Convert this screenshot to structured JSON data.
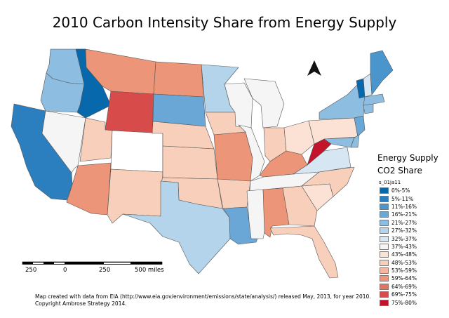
{
  "title": "2010 Carbon Intensity Share from Energy Supply",
  "legend": {
    "title_line1": "Energy Supply",
    "title_line2": "CO2 Share",
    "field": "s_01ja11",
    "classes": [
      {
        "label": "0%-5%",
        "color": "#0868ac"
      },
      {
        "label": "5%-11%",
        "color": "#2b7fbf"
      },
      {
        "label": "11%-16%",
        "color": "#4a95cc"
      },
      {
        "label": "16%-21%",
        "color": "#6aa7d6"
      },
      {
        "label": "21%-27%",
        "color": "#8dbde0"
      },
      {
        "label": "27%-32%",
        "color": "#b3d4ea"
      },
      {
        "label": "32%-37%",
        "color": "#d6e6f2"
      },
      {
        "label": "37%-43%",
        "color": "#f5f5f5"
      },
      {
        "label": "43%-48%",
        "color": "#fbe2d5"
      },
      {
        "label": "48%-53%",
        "color": "#f8cfba"
      },
      {
        "label": "53%-59%",
        "color": "#f4b69c"
      },
      {
        "label": "59%-64%",
        "color": "#ec9578"
      },
      {
        "label": "64%-69%",
        "color": "#e27562"
      },
      {
        "label": "69%-75%",
        "color": "#d84b4b"
      },
      {
        "label": "75%-80%",
        "color": "#c4142b"
      }
    ]
  },
  "scale_bar": {
    "labels": [
      "250",
      "0",
      "250",
      "500 miles"
    ]
  },
  "footer": {
    "line1": "Map created with data from EIA (http://www.eia.gov/environment/emissions/state/analysis/) released May, 2013, for year 2010.",
    "line2": "Copyright Ambrose Strategy 2014."
  },
  "states": [
    {
      "name": "WA",
      "color": "#8dbde0"
    },
    {
      "name": "OR",
      "color": "#8dbde0"
    },
    {
      "name": "CA",
      "color": "#2b7fbf"
    },
    {
      "name": "NV",
      "color": "#f5f5f5"
    },
    {
      "name": "ID",
      "color": "#0868ac"
    },
    {
      "name": "MT",
      "color": "#ec9578"
    },
    {
      "name": "WY",
      "color": "#d84b4b"
    },
    {
      "name": "UT",
      "color": "#f8cfba"
    },
    {
      "name": "AZ",
      "color": "#ec9578"
    },
    {
      "name": "CO",
      "color": "#ffffff"
    },
    {
      "name": "NM",
      "color": "#f8cfba"
    },
    {
      "name": "ND",
      "color": "#ec9578"
    },
    {
      "name": "SD",
      "color": "#6aa7d6"
    },
    {
      "name": "NE",
      "color": "#f8cfba"
    },
    {
      "name": "KS",
      "color": "#f8cfba"
    },
    {
      "name": "OK",
      "color": "#f8cfba"
    },
    {
      "name": "TX",
      "color": "#b3d4ea"
    },
    {
      "name": "MN",
      "color": "#b3d4ea"
    },
    {
      "name": "IA",
      "color": "#f8cfba"
    },
    {
      "name": "MO",
      "color": "#ec9578"
    },
    {
      "name": "AR",
      "color": "#f8cfba"
    },
    {
      "name": "LA",
      "color": "#6aa7d6"
    },
    {
      "name": "WI",
      "color": "#f5f5f5"
    },
    {
      "name": "IL",
      "color": "#f5f5f5"
    },
    {
      "name": "MI",
      "color": "#f5f5f5"
    },
    {
      "name": "IN",
      "color": "#f8cfba"
    },
    {
      "name": "OH",
      "color": "#fbe2d5"
    },
    {
      "name": "KY",
      "color": "#ec9578"
    },
    {
      "name": "TN",
      "color": "#f5f5f5"
    },
    {
      "name": "MS",
      "color": "#f5f5f5"
    },
    {
      "name": "AL",
      "color": "#ec9578"
    },
    {
      "name": "GA",
      "color": "#f8cfba"
    },
    {
      "name": "FL",
      "color": "#f8cfba"
    },
    {
      "name": "SC",
      "color": "#fbe2d5"
    },
    {
      "name": "NC",
      "color": "#f8cfba"
    },
    {
      "name": "VA",
      "color": "#d6e6f2"
    },
    {
      "name": "WV",
      "color": "#c4142b"
    },
    {
      "name": "PA",
      "color": "#fbe2d5"
    },
    {
      "name": "NY",
      "color": "#8dbde0"
    },
    {
      "name": "NJ",
      "color": "#6aa7d6"
    },
    {
      "name": "MD",
      "color": "#8dbde0"
    },
    {
      "name": "DE",
      "color": "#8dbde0"
    },
    {
      "name": "VT",
      "color": "#0868ac"
    },
    {
      "name": "NH",
      "color": "#d6e6f2"
    },
    {
      "name": "ME",
      "color": "#4a95cc"
    },
    {
      "name": "MA",
      "color": "#8dbde0"
    },
    {
      "name": "CT",
      "color": "#8dbde0"
    }
  ]
}
